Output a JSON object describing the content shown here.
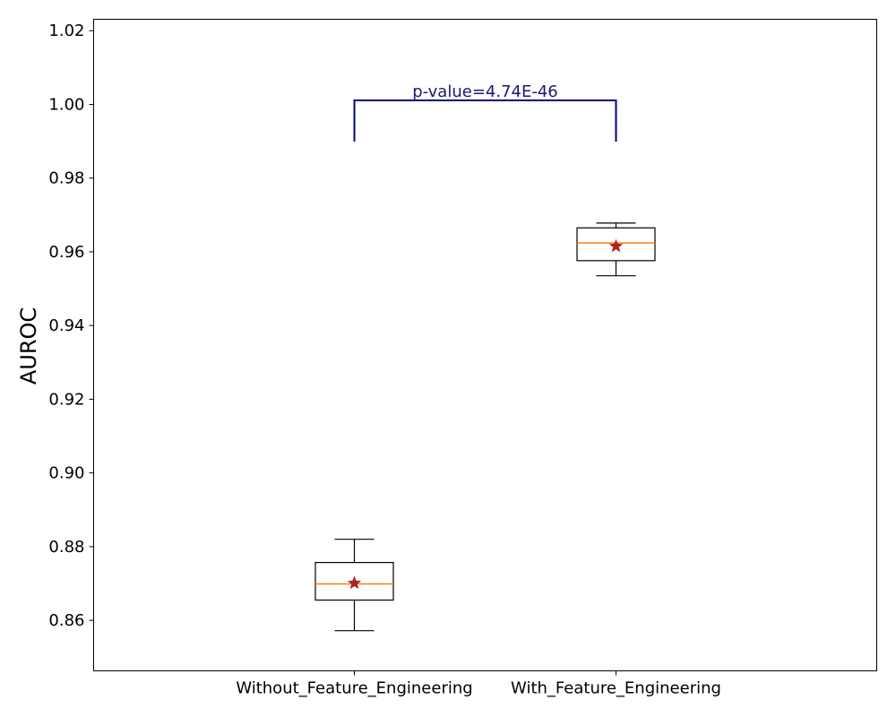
{
  "chart_data": {
    "type": "box",
    "title": "",
    "xlabel": "",
    "ylabel": "AUROC",
    "ylim": [
      0.8463,
      1.0231
    ],
    "y_ticks": [
      "0.86",
      "0.88",
      "0.90",
      "0.92",
      "0.94",
      "0.96",
      "0.98",
      "1.00",
      "1.02"
    ],
    "y_tick_values": [
      0.86,
      0.88,
      0.9,
      0.92,
      0.94,
      0.96,
      0.98,
      1.0,
      1.02
    ],
    "categories": [
      "Without_Feature_Engineering",
      "With_Feature_Engineering"
    ],
    "boxes": [
      {
        "category": "Without_Feature_Engineering",
        "whisker_low": 0.8572,
        "q1": 0.8655,
        "median": 0.8699,
        "q3": 0.8757,
        "whisker_high": 0.882,
        "mean": 0.8701
      },
      {
        "category": "With_Feature_Engineering",
        "whisker_low": 0.9535,
        "q1": 0.9576,
        "median": 0.9624,
        "q3": 0.9665,
        "whisker_high": 0.9678,
        "mean": 0.9615
      }
    ],
    "significance": {
      "label": "p-value=4.74E-46",
      "bracket_y": 1.0011,
      "leg_bottom_y": 0.9899
    },
    "grid": false,
    "legend": "none",
    "colors": {
      "box": "#000000",
      "median": "#ff7f0e",
      "mean_marker": "#b22222",
      "bracket": "#000080",
      "annotation_text": "#191970"
    }
  }
}
